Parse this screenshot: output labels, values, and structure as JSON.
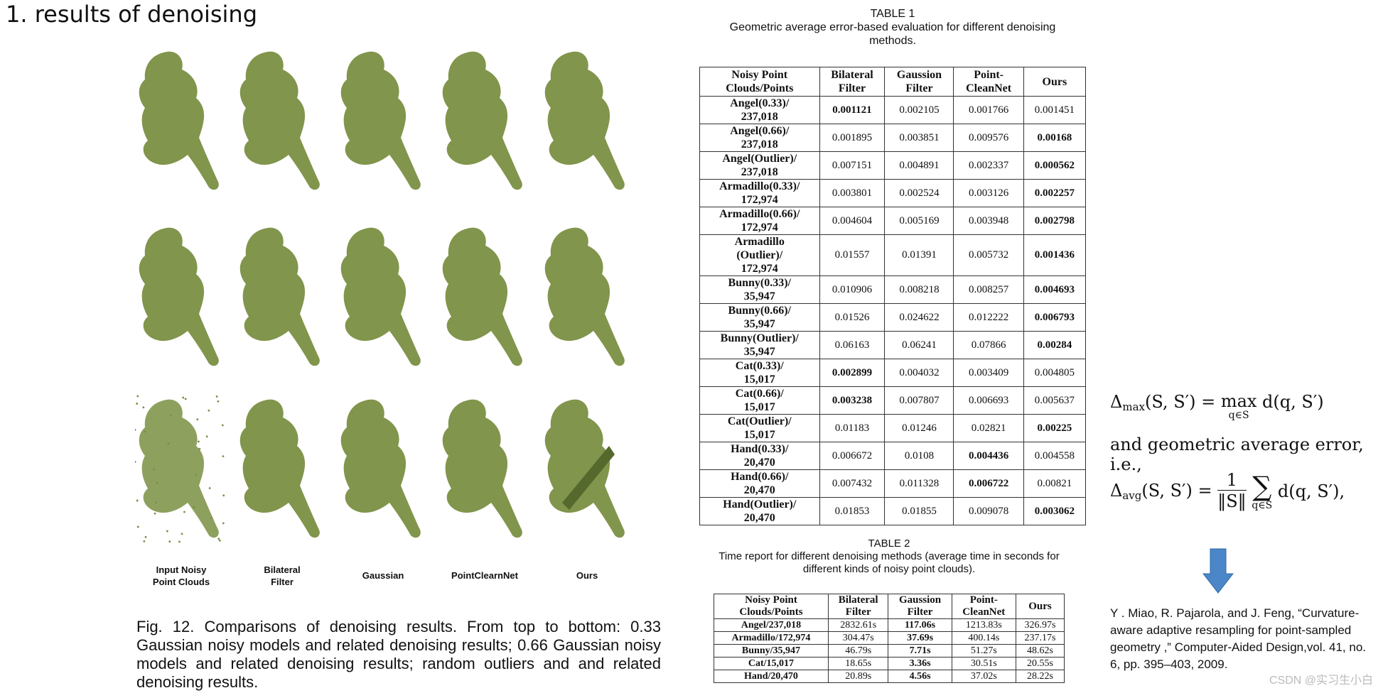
{
  "heading": "1. results of denoising",
  "figure": {
    "column_labels": [
      {
        "line1": "Input Noisy",
        "line2": "Point Clouds"
      },
      {
        "line1": "Bilateral",
        "line2": "Filter"
      },
      {
        "line1": "Gaussian",
        "line2": ""
      },
      {
        "line1": "PointClearnNet",
        "line2": ""
      },
      {
        "line1": "Ours",
        "line2": ""
      }
    ],
    "color": "#7a8f42",
    "caption": "Fig. 12. Comparisons of denoising results. From top to bottom: 0.33 Gaussian noisy models and related denoising results; 0.66 Gaussian noisy models and related denoising results; random outliers and and related denoising results."
  },
  "table1": {
    "label": "TABLE 1",
    "title": "Geometric average error-based evaluation for different denoising methods.",
    "headers": [
      {
        "l1": "Noisy Point",
        "l2": "Clouds/Points"
      },
      {
        "l1": "Bilateral",
        "l2": "Filter"
      },
      {
        "l1": "Gaussion",
        "l2": "Filter"
      },
      {
        "l1": "Point-",
        "l2": "CleanNet"
      },
      {
        "l1": "Ours",
        "l2": ""
      }
    ],
    "rows": [
      {
        "name": [
          "Angel(0.33)/",
          "237,018"
        ],
        "vals": [
          "0.001121",
          "0.002105",
          "0.001766",
          "0.001451"
        ],
        "bold": 0
      },
      {
        "name": [
          "Angel(0.66)/",
          "237,018"
        ],
        "vals": [
          "0.001895",
          "0.003851",
          "0.009576",
          "0.00168"
        ],
        "bold": 3
      },
      {
        "name": [
          "Angel(Outlier)/",
          "237,018"
        ],
        "vals": [
          "0.007151",
          "0.004891",
          "0.002337",
          "0.000562"
        ],
        "bold": 3
      },
      {
        "name": [
          "Armadillo(0.33)/",
          "172,974"
        ],
        "vals": [
          "0.003801",
          "0.002524",
          "0.003126",
          "0.002257"
        ],
        "bold": 3
      },
      {
        "name": [
          "Armadillo(0.66)/",
          "172,974"
        ],
        "vals": [
          "0.004604",
          "0.005169",
          "0.003948",
          "0.002798"
        ],
        "bold": 3
      },
      {
        "name": [
          "Armadillo",
          "(Outlier)/",
          "172,974"
        ],
        "vals": [
          "0.01557",
          "0.01391",
          "0.005732",
          "0.001436"
        ],
        "bold": 3
      },
      {
        "name": [
          "Bunny(0.33)/",
          "35,947"
        ],
        "vals": [
          "0.010906",
          "0.008218",
          "0.008257",
          "0.004693"
        ],
        "bold": 3
      },
      {
        "name": [
          "Bunny(0.66)/",
          "35,947"
        ],
        "vals": [
          "0.01526",
          "0.024622",
          "0.012222",
          "0.006793"
        ],
        "bold": 3
      },
      {
        "name": [
          "Bunny(Outlier)/",
          "35,947"
        ],
        "vals": [
          "0.06163",
          "0.06241",
          "0.07866",
          "0.00284"
        ],
        "bold": 3
      },
      {
        "name": [
          "Cat(0.33)/",
          "15,017"
        ],
        "vals": [
          "0.002899",
          "0.004032",
          "0.003409",
          "0.004805"
        ],
        "bold": 0
      },
      {
        "name": [
          "Cat(0.66)/",
          "15,017"
        ],
        "vals": [
          "0.003238",
          "0.007807",
          "0.006693",
          "0.005637"
        ],
        "bold": 0
      },
      {
        "name": [
          "Cat(Outlier)/",
          "15,017"
        ],
        "vals": [
          "0.01183",
          "0.01246",
          "0.02821",
          "0.00225"
        ],
        "bold": 3
      },
      {
        "name": [
          "Hand(0.33)/",
          "20,470"
        ],
        "vals": [
          "0.006672",
          "0.0108",
          "0.004436",
          "0.004558"
        ],
        "bold": 2
      },
      {
        "name": [
          "Hand(0.66)/",
          "20,470"
        ],
        "vals": [
          "0.007432",
          "0.011328",
          "0.006722",
          "0.00821"
        ],
        "bold": 2
      },
      {
        "name": [
          "Hand(Outlier)/",
          "20,470"
        ],
        "vals": [
          "0.01853",
          "0.01855",
          "0.009078",
          "0.003062"
        ],
        "bold": 3
      }
    ]
  },
  "table2": {
    "label": "TABLE 2",
    "title": "Time report for different denoising methods (average time in seconds for different kinds of noisy point clouds).",
    "headers": [
      {
        "l1": "Noisy Point",
        "l2": "Clouds/Points"
      },
      {
        "l1": "Bilateral",
        "l2": "Filter"
      },
      {
        "l1": "Gaussion",
        "l2": "Filter"
      },
      {
        "l1": "Point-",
        "l2": "CleanNet"
      },
      {
        "l1": "Ours",
        "l2": ""
      }
    ],
    "rows": [
      {
        "name": "Angel/237,018",
        "vals": [
          "2832.61s",
          "117.06s",
          "1213.83s",
          "326.97s"
        ],
        "bold": 1
      },
      {
        "name": "Armadillo/172,974",
        "vals": [
          "304.47s",
          "37.69s",
          "400.14s",
          "237.17s"
        ],
        "bold": 1
      },
      {
        "name": "Bunny/35,947",
        "vals": [
          "46.79s",
          "7.71s",
          "51.27s",
          "48.62s"
        ],
        "bold": 1
      },
      {
        "name": "Cat/15,017",
        "vals": [
          "18.65s",
          "3.36s",
          "30.51s",
          "20.55s"
        ],
        "bold": 1
      },
      {
        "name": "Hand/20,470",
        "vals": [
          "20.89s",
          "4.56s",
          "37.02s",
          "28.22s"
        ],
        "bold": 1
      }
    ]
  },
  "formulas": {
    "max_lhs": "Δ",
    "max_sub": "max",
    "max_args": "(S, S′) = ",
    "max_op": "max",
    "max_op_sub": "q∈S",
    "max_rhs": " d(q, S′)",
    "connector": "and geometric average error, i.e.,",
    "avg_lhs": "Δ",
    "avg_sub": "avg",
    "avg_args": "(S, S′) = ",
    "frac_num": "1",
    "frac_den": "‖S‖",
    "sum_sym": "∑",
    "sum_sub": "q∈S",
    "avg_rhs": " d(q, S′),"
  },
  "arrow_color": "#4a86c8",
  "reference": "Y . Miao, R. Pajarola, and J. Feng, “Curvature-aware adaptive resampling for point-sampled geometry ,”  Computer-Aided Design,vol. 41, no. 6, pp. 395–403, 2009.",
  "watermark": "CSDN @实习生小白"
}
